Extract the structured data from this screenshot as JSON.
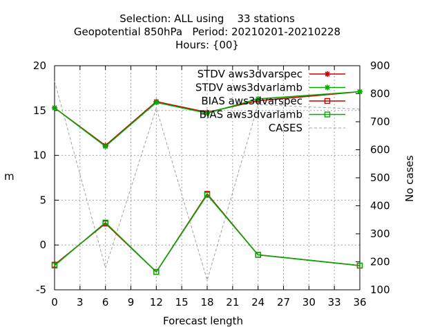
{
  "title_lines": [
    "Selection: ALL using    33 stations",
    "Geopotential 850hPa   Period: 20210201-20210228",
    "Hours: {00}"
  ],
  "chart_data": {
    "type": "line",
    "xlabel": "Forecast length",
    "ylabel": "m",
    "y2label": "No cases",
    "xlim": [
      0,
      36
    ],
    "ylim": [
      -5,
      20
    ],
    "y2lim": [
      100,
      900
    ],
    "xticks": [
      0,
      3,
      6,
      9,
      12,
      15,
      18,
      21,
      24,
      27,
      30,
      33,
      36
    ],
    "yticks": [
      -5,
      0,
      5,
      10,
      15,
      20
    ],
    "y2ticks": [
      100,
      200,
      300,
      400,
      500,
      600,
      700,
      800,
      900
    ],
    "grid": true,
    "legend_position": "top-right",
    "x": [
      0,
      6,
      12,
      18,
      24,
      36
    ],
    "series": [
      {
        "name": "STDV aws3dvarspec",
        "axis": "y",
        "color": "#cc0000",
        "marker": "star",
        "values": [
          15.3,
          11.1,
          16.0,
          14.8,
          16.1,
          17.1
        ]
      },
      {
        "name": "STDV aws3dvarlamb",
        "axis": "y",
        "color": "#00aa00",
        "marker": "star",
        "values": [
          15.3,
          11.0,
          15.9,
          14.7,
          16.3,
          17.1
        ]
      },
      {
        "name": "BIAS aws3dvarspec",
        "axis": "y",
        "color": "#cc0000",
        "marker": "square",
        "values": [
          -2.2,
          2.4,
          -3.0,
          5.7,
          -1.1,
          -2.3
        ]
      },
      {
        "name": "BIAS aws3dvarlamb",
        "axis": "y",
        "color": "#00aa00",
        "marker": "square",
        "values": [
          -2.3,
          2.5,
          -3.0,
          5.6,
          -1.1,
          -2.3
        ]
      },
      {
        "name": "CASES",
        "axis": "y2",
        "color": "#a0a0a0",
        "marker": "none",
        "values": [
          845,
          178,
          749,
          134,
          761,
          745
        ]
      }
    ]
  }
}
